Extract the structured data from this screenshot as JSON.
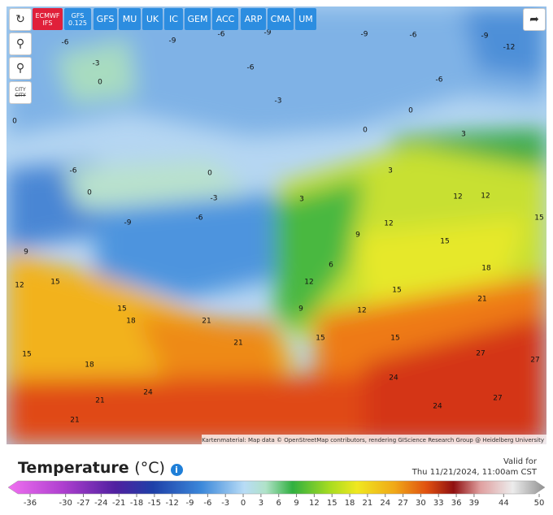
{
  "models": [
    [
      "ECMWF",
      "IFS"
    ],
    [
      "GFS",
      "0.125"
    ],
    [
      "GFS"
    ],
    [
      "MU"
    ],
    [
      "UK"
    ],
    [
      "IC"
    ],
    [
      "GEM"
    ],
    [
      "ACC"
    ],
    [
      "ARP"
    ],
    [
      "CMA"
    ],
    [
      "UM"
    ]
  ],
  "tools": {
    "city": "CITY"
  },
  "map": {
    "attribution": "Kartenmaterial: Map data © OpenStreetMap contributors, rendering GIScience Research Group @ Heidelberg University",
    "labels": [
      "-6",
      "-3",
      "0",
      "-9",
      "-6",
      "-9",
      "-6",
      "-3",
      "-9",
      "-6",
      "-9",
      "-12",
      "-6",
      "0",
      "0",
      "3",
      "0",
      "-6",
      "0",
      "-3",
      "0",
      "-6",
      "-9",
      "3",
      "12",
      "12",
      "15",
      "12",
      "9",
      "15",
      "9",
      "12",
      "15",
      "12",
      "18",
      "21",
      "15",
      "15",
      "18",
      "21",
      "21",
      "18",
      "15",
      "24",
      "27",
      "27",
      "24",
      "21",
      "21",
      "27",
      "24",
      "9",
      "15",
      "15",
      "12",
      "6",
      "3"
    ]
  },
  "footer": {
    "title": "Temperature",
    "unit": "(°C)",
    "valid_label": "Valid for",
    "valid_time": "Thu 11/21/2024, 11:00am CST"
  },
  "scale": {
    "ticks": [
      -36,
      -30,
      -27,
      -24,
      -21,
      -18,
      -15,
      -12,
      -9,
      -6,
      -3,
      0,
      3,
      6,
      9,
      12,
      15,
      18,
      21,
      24,
      27,
      30,
      33,
      36,
      39,
      44,
      50
    ]
  }
}
